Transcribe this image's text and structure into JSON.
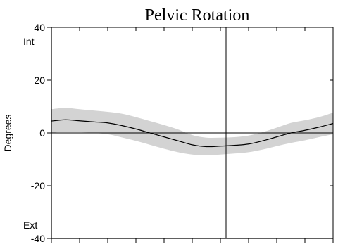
{
  "chart_data": {
    "type": "line",
    "title": "Pelvic Rotation",
    "ylabel": "Degrees",
    "xlabel": "",
    "ylim": [
      -40,
      40
    ],
    "xlim": [
      0,
      100
    ],
    "y_ticks": [
      -40,
      -20,
      0,
      20,
      40
    ],
    "y_tick_labels": [
      "-40",
      "-20",
      "0",
      "20",
      "40"
    ],
    "x_ticks": [
      0,
      10,
      20,
      30,
      40,
      50,
      60,
      70,
      80,
      90,
      100
    ],
    "top_annotation": "Int",
    "bottom_annotation": "Ext",
    "reference_line_x": 62,
    "zero_line": true,
    "grid": false,
    "series": [
      {
        "x": [
          0,
          5,
          10,
          15,
          20,
          25,
          30,
          35,
          40,
          45,
          50,
          55,
          60,
          65,
          70,
          75,
          80,
          85,
          90,
          95,
          100
        ],
        "values": [
          4.5,
          5,
          4.6,
          4.2,
          3.8,
          2.8,
          1.5,
          0,
          -1.5,
          -3,
          -4.5,
          -5.2,
          -5,
          -4.7,
          -4.2,
          -3,
          -1.5,
          0,
          1,
          2.2,
          3.6
        ]
      }
    ],
    "band": {
      "x": [
        0,
        5,
        10,
        15,
        20,
        25,
        30,
        35,
        40,
        45,
        50,
        55,
        60,
        65,
        70,
        75,
        80,
        85,
        90,
        95,
        100
      ],
      "lower": [
        0,
        0.5,
        0.3,
        0,
        -0.5,
        -1.7,
        -3,
        -4.5,
        -6,
        -7.3,
        -8.2,
        -8.5,
        -8.2,
        -7.8,
        -7.3,
        -6.3,
        -5,
        -3.8,
        -2.8,
        -1.6,
        -0.5
      ],
      "upper": [
        9,
        9.5,
        9,
        8.5,
        8,
        7.3,
        6,
        4.5,
        3,
        1.3,
        -0.8,
        -1.8,
        -1.8,
        -1.6,
        -1,
        0.3,
        2,
        3.8,
        4.8,
        6,
        7.7
      ]
    },
    "colors": {
      "line": "#000000",
      "band": "#d3d3d3",
      "axis": "#000000"
    }
  }
}
